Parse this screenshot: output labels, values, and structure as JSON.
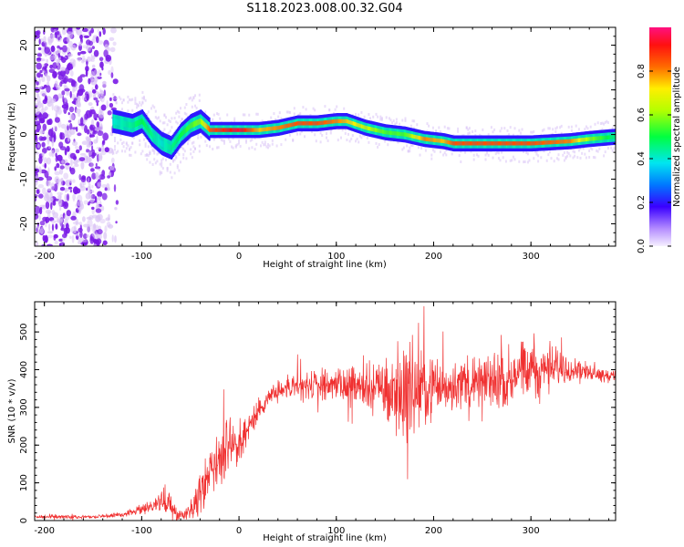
{
  "title": "S118.2023.008.00.32.G04",
  "colors": {
    "snr_line": "#f03030",
    "axis": "#000000",
    "dot_dark": "#7a1ae6",
    "dot_light": "#d9c2f5"
  },
  "chart_data": [
    {
      "type": "heatmap",
      "title": "S118.2023.008.00.32.G04",
      "xlabel": "Height of straight line (km)",
      "ylabel": "Frequency (Hz)",
      "xlim": [
        -210,
        387
      ],
      "ylim": [
        -25,
        24
      ],
      "xticks": [
        -200,
        -100,
        0,
        100,
        200,
        300
      ],
      "yticks": [
        -20,
        -10,
        0,
        10,
        20
      ],
      "colorbar": {
        "label": "Normalized spectral amplitude",
        "range": [
          0.0,
          1.0
        ],
        "ticks": [
          0.0,
          0.2,
          0.4,
          0.6,
          0.8
        ],
        "tick_labels": [
          "0.0",
          "0.2",
          "0.4",
          "0.6",
          "0.8"
        ]
      },
      "ridge": {
        "name": "",
        "x": [
          -130,
          -110,
          -100,
          -90,
          -80,
          -70,
          -60,
          -50,
          -40,
          -30,
          0,
          20,
          40,
          60,
          80,
          100,
          110,
          130,
          150,
          170,
          190,
          210,
          220,
          240,
          260,
          300,
          340,
          360,
          387
        ],
        "y": [
          3,
          2,
          3,
          0,
          -2,
          -3,
          0,
          2,
          3,
          1,
          1,
          1,
          1.5,
          2.5,
          2.5,
          3,
          3,
          1.5,
          0.5,
          0,
          -1,
          -1.5,
          -2,
          -2,
          -2,
          -2,
          -1.5,
          -1,
          -0.5
        ],
        "peak_amplitude": [
          0.4,
          0.45,
          0.5,
          0.45,
          0.4,
          0.45,
          0.5,
          0.55,
          0.6,
          0.85,
          0.95,
          0.75,
          0.8,
          0.85,
          0.85,
          0.8,
          0.75,
          0.65,
          0.55,
          0.55,
          0.8,
          0.75,
          0.85,
          0.85,
          0.85,
          0.85,
          0.8,
          0.6,
          0.45
        ]
      },
      "noise_region_x": [
        -210,
        -125
      ]
    },
    {
      "type": "line",
      "xlabel": "Height of straight line (km)",
      "ylabel": "SNR (10 * v/v)",
      "xlim": [
        -210,
        387
      ],
      "ylim": [
        0,
        580
      ],
      "xticks": [
        -200,
        -100,
        0,
        100,
        200,
        300
      ],
      "yticks": [
        0,
        100,
        200,
        300,
        400,
        500
      ],
      "envelope": {
        "x": [
          -210,
          -180,
          -150,
          -120,
          -100,
          -85,
          -75,
          -70,
          -60,
          -50,
          -40,
          -30,
          -20,
          -10,
          0,
          10,
          20,
          30,
          50,
          70,
          100,
          130,
          150,
          160,
          170,
          180,
          190,
          200,
          220,
          250,
          280,
          300,
          320,
          340,
          360,
          387
        ],
        "mean": [
          10,
          10,
          10,
          15,
          30,
          45,
          50,
          35,
          15,
          30,
          70,
          130,
          170,
          190,
          210,
          250,
          290,
          330,
          350,
          355,
          360,
          355,
          350,
          345,
          340,
          345,
          350,
          355,
          360,
          365,
          380,
          400,
          405,
          405,
          395,
          380
        ],
        "spread": [
          6,
          6,
          6,
          8,
          15,
          30,
          60,
          40,
          15,
          30,
          60,
          80,
          100,
          100,
          80,
          50,
          40,
          30,
          40,
          50,
          45,
          70,
          100,
          140,
          170,
          150,
          120,
          90,
          80,
          90,
          100,
          110,
          80,
          40,
          25,
          20
        ]
      }
    }
  ]
}
